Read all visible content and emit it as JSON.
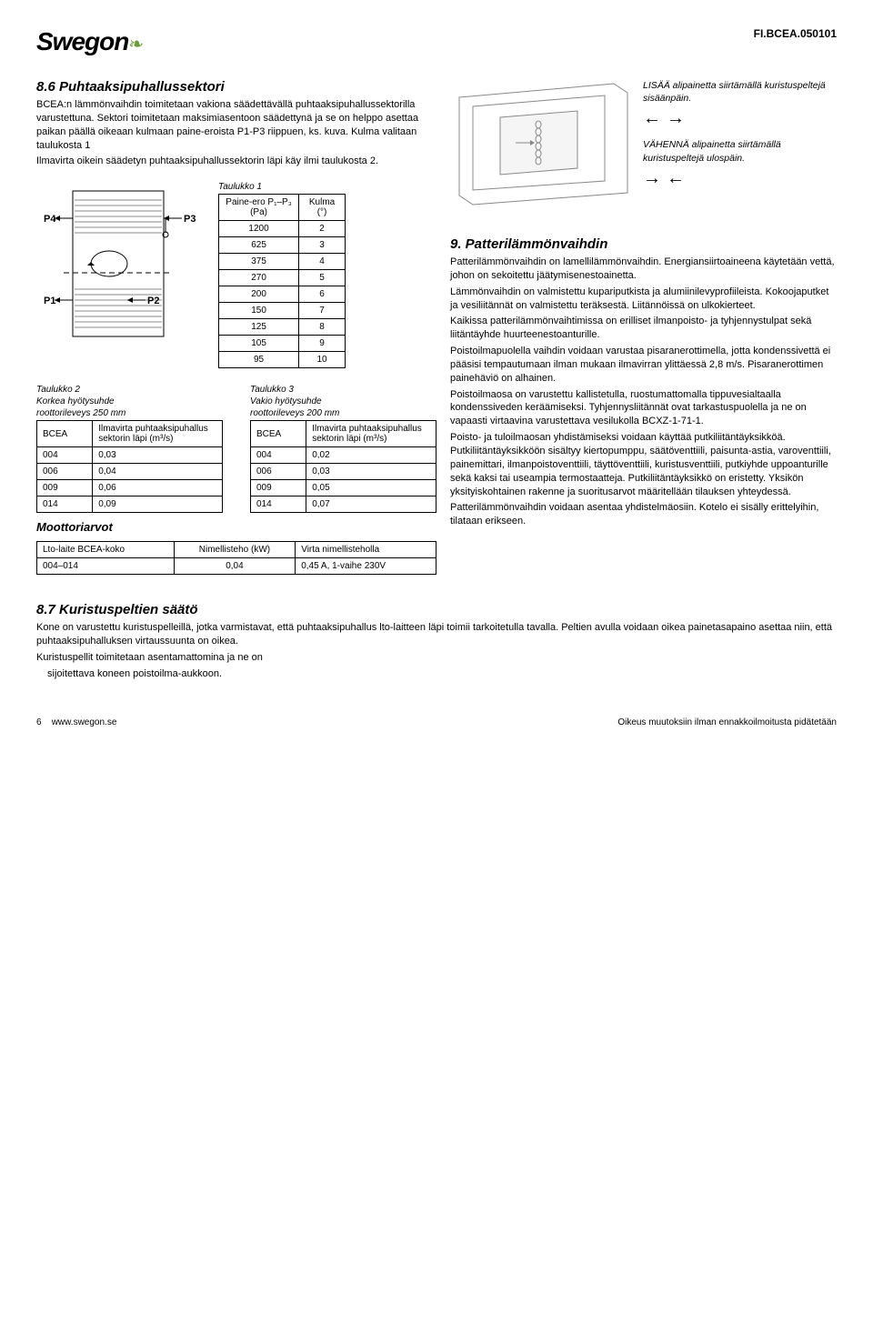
{
  "document_code": "FI.BCEA.050101",
  "logo_text": "Swegon",
  "sec86": {
    "heading": "8.6 Puhtaaksipuhallussektori",
    "p1": "BCEA:n lämmönvaihdin toimitetaan vakiona säädettävällä puhtaaksipuhallussektorilla varustettuna. Sektori toimitetaan maksimiasentoon säädettynä ja se on helppo asettaa paikan päällä oikeaan kulmaan paine-eroista P1-P3 riippuen, ks. kuva. Kulma valitaan taulukosta 1",
    "p2": "Ilmavirta oikein säädetyn puhtaaksipuhallussektorin läpi käy ilmi taulukosta 2."
  },
  "labels": {
    "P1": "P1",
    "P2": "P2",
    "P3": "P3",
    "P4": "P4"
  },
  "table1": {
    "caption": "Taulukko 1",
    "header_left": "Paine-ero P₁–P₃ (Pa)",
    "header_right": "Kulma (°)",
    "rows": [
      [
        "1200",
        "2"
      ],
      [
        "625",
        "3"
      ],
      [
        "375",
        "4"
      ],
      [
        "270",
        "5"
      ],
      [
        "200",
        "6"
      ],
      [
        "150",
        "7"
      ],
      [
        "125",
        "8"
      ],
      [
        "105",
        "9"
      ],
      [
        "95",
        "10"
      ]
    ]
  },
  "table2": {
    "caption": "Taulukko 2",
    "sub1": "Korkea hyötysuhde",
    "sub2": "roottorileveys 250 mm",
    "h1": "BCEA",
    "h2": "Ilmavirta puhtaaksipuhallus sektorin läpi (m³/s)",
    "rows": [
      [
        "004",
        "0,03"
      ],
      [
        "006",
        "0,04"
      ],
      [
        "009",
        "0,06"
      ],
      [
        "014",
        "0,09"
      ]
    ]
  },
  "table3": {
    "caption": "Taulukko 3",
    "sub1": "Vakio hyötysuhde",
    "sub2": "roottorileveys 200 mm",
    "h1": "BCEA",
    "h2": "Ilmavirta puhtaaksipuhallus sektorin läpi (m³/s)",
    "rows": [
      [
        "004",
        "0,02"
      ],
      [
        "006",
        "0,03"
      ],
      [
        "009",
        "0,05"
      ],
      [
        "014",
        "0,07"
      ]
    ]
  },
  "motor_heading": "Moottoriarvot",
  "table4": {
    "h1": "Lto-laite BCEA-koko",
    "h2": "Nimellisteho (kW)",
    "h3": "Virta nimellisteholla",
    "row": [
      "004–014",
      "0,04",
      "0,45 A, 1-vaihe 230V"
    ]
  },
  "notes": {
    "increase": "LISÄÄ alipainetta siirtämällä kuristuspeltejä sisäänpäin.",
    "decrease": "VÄHENNÄ alipainetta siirtämällä kuristuspeltejä ulospäin."
  },
  "sec9": {
    "heading": "9. Patterilämmönvaihdin",
    "p1": "Patterilämmönvaihdin on lamellilämmönvaihdin. Energiansiirtoaineena käytetään vettä, johon on sekoitettu jäätymisenestoainetta.",
    "p2": "Lämmönvaihdin on valmistettu kupariputkista ja alumiinilevyprofiileista. Kokoojaputket ja vesiliitännät on valmistettu teräksestä. Liitännöissä on ulkokierteet.",
    "p3": "Kaikissa patterilämmönvaihtimissa on erilliset ilmanpoisto- ja tyhjennystulpat sekä liitäntäyhde huurteenestoanturille.",
    "p4": "Poistoilmapuolella vaihdin voidaan varustaa pisaranerottimella, jotta kondenssivettä ei pääsisi tempautumaan ilman mukaan ilmavirran ylittäessä 2,8 m/s. Pisaranerottimen painehäviö on alhainen.",
    "p5": "Poistoilmaosa on varustettu kallistetulla, ruostumattomalla tippuvesialtaalla kondenssiveden keräämiseksi. Tyhjennysliitännät ovat tarkastuspuolella ja ne on vapaasti virtaavina varustettava vesilukolla BCXZ-1-71-1.",
    "p6": "Poisto- ja tuloilmaosan yhdistämiseksi voidaan käyttää putkiliitäntäyksikköä. Putkiliitäntäyksikköön sisältyy kiertopumppu, säätöventtiili, paisunta-astia, varoventtiili, painemittari, ilmanpoistoventtiili, täyttöventtiili, kuristusventtiili, putkiyhde uppoanturille sekä kaksi tai useampia termostaatteja. Putkiliitäntäyksikkö on eristetty.  Yksikön yksityiskohtainen rakenne ja suoritusarvot määritellään tilauksen yhteydessä.",
    "p7": "Patterilämmönvaihdin voidaan asentaa yhdistelmäosiin. Kotelo ei sisälly erittelyihin, tilataan erikseen."
  },
  "sec87": {
    "heading": "8.7 Kuristuspeltien säätö",
    "p1": "Kone on varustettu kuristuspelleillä, jotka varmistavat, että puhtaaksipuhallus lto-laitteen läpi toimii tarkoitetulla tavalla. Peltien avulla voidaan oikea painetasapaino asettaa niin, että puhtaaksipuhalluksen virtaussuunta on oikea.",
    "p2": "Kuristuspellit toimitetaan asentamattomina ja ne on",
    "p3": "sijoitettava koneen poistoilma-aukkoon."
  },
  "footer": {
    "left_page": "6",
    "left_url": "www.swegon.se",
    "right": "Oikeus muutoksiin ilman ennakkoilmoitusta pidätetään"
  },
  "colors": {
    "text": "#000000",
    "leaf": "#6a9b3a",
    "hatch": "#888888"
  }
}
